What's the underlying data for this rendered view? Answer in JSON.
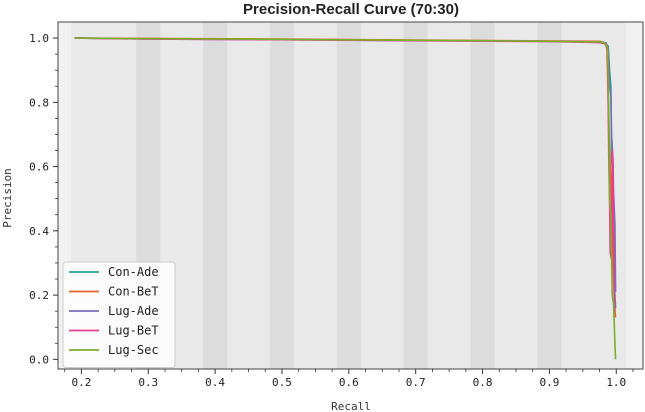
{
  "chart_data": {
    "type": "line",
    "title": "Precision-Recall Curve (70:30)",
    "xlabel": "Recall",
    "ylabel": "Precision",
    "xlim": [
      0.165,
      1.04
    ],
    "ylim": [
      -0.03,
      1.05
    ],
    "xticks": [
      0.2,
      0.3,
      0.4,
      0.5,
      0.6,
      0.7,
      0.8,
      0.9,
      1.0
    ],
    "yticks": [
      0.0,
      0.2,
      0.4,
      0.6,
      0.8,
      1.0
    ],
    "xtick_labels": [
      "0.2",
      "0.3",
      "0.4",
      "0.5",
      "0.6",
      "0.7",
      "0.8",
      "0.9",
      "1.0"
    ],
    "ytick_labels": [
      "0.0",
      "0.2",
      "0.4",
      "0.6",
      "0.8",
      "1.0"
    ],
    "grid": false,
    "legend_position": "lower-left",
    "colors": {
      "plot_bg": "#e9e9e9",
      "band_dark": "#dcdcdc",
      "band_light": "#f2f2f2"
    },
    "series": [
      {
        "name": "Con-Ade",
        "color": "#2aa198",
        "points": [
          [
            0.19,
            1.0
          ],
          [
            0.3,
            0.998
          ],
          [
            0.5,
            0.996
          ],
          [
            0.7,
            0.993
          ],
          [
            0.9,
            0.99
          ],
          [
            0.975,
            0.988
          ],
          [
            0.982,
            0.985
          ],
          [
            0.988,
            0.975
          ],
          [
            0.99,
            0.9
          ],
          [
            0.992,
            0.85
          ],
          [
            0.993,
            0.62
          ],
          [
            0.995,
            0.58
          ],
          [
            0.996,
            0.35
          ],
          [
            0.997,
            0.3
          ],
          [
            0.998,
            0.2
          ],
          [
            0.999,
            0.16
          ]
        ]
      },
      {
        "name": "Con-BeT",
        "color": "#e8652b",
        "points": [
          [
            0.19,
            1.0
          ],
          [
            0.3,
            0.999
          ],
          [
            0.5,
            0.997
          ],
          [
            0.7,
            0.994
          ],
          [
            0.9,
            0.991
          ],
          [
            0.975,
            0.99
          ],
          [
            0.982,
            0.986
          ],
          [
            0.986,
            0.97
          ],
          [
            0.988,
            0.8
          ],
          [
            0.99,
            0.65
          ],
          [
            0.992,
            0.55
          ],
          [
            0.994,
            0.4
          ],
          [
            0.996,
            0.25
          ],
          [
            0.998,
            0.15
          ],
          [
            0.999,
            0.13
          ]
        ]
      },
      {
        "name": "Lug-Ade",
        "color": "#7a6fb0",
        "points": [
          [
            0.19,
            1.0
          ],
          [
            0.3,
            0.997
          ],
          [
            0.5,
            0.995
          ],
          [
            0.7,
            0.992
          ],
          [
            0.9,
            0.99
          ],
          [
            0.975,
            0.988
          ],
          [
            0.985,
            0.985
          ],
          [
            0.988,
            0.96
          ],
          [
            0.99,
            0.85
          ],
          [
            0.992,
            0.82
          ],
          [
            0.993,
            0.7
          ],
          [
            0.995,
            0.62
          ],
          [
            0.996,
            0.52
          ],
          [
            0.998,
            0.42
          ],
          [
            0.999,
            0.21
          ]
        ]
      },
      {
        "name": "Lug-BeT",
        "color": "#e83e8c",
        "points": [
          [
            0.19,
            1.0
          ],
          [
            0.3,
            0.997
          ],
          [
            0.5,
            0.995
          ],
          [
            0.7,
            0.992
          ],
          [
            0.9,
            0.989
          ],
          [
            0.975,
            0.986
          ],
          [
            0.984,
            0.982
          ],
          [
            0.987,
            0.96
          ],
          [
            0.989,
            0.6
          ],
          [
            0.99,
            0.5
          ],
          [
            0.991,
            0.33
          ],
          [
            0.993,
            0.31
          ],
          [
            0.994,
            0.65
          ],
          [
            0.995,
            0.62
          ],
          [
            0.997,
            0.2
          ],
          [
            0.998,
            0.15
          ]
        ]
      },
      {
        "name": "Lug-Sec",
        "color": "#7cae2f",
        "points": [
          [
            0.19,
            1.0
          ],
          [
            0.3,
            0.998
          ],
          [
            0.5,
            0.996
          ],
          [
            0.7,
            0.993
          ],
          [
            0.9,
            0.99
          ],
          [
            0.975,
            0.988
          ],
          [
            0.983,
            0.985
          ],
          [
            0.987,
            0.97
          ],
          [
            0.989,
            0.75
          ],
          [
            0.99,
            0.5
          ],
          [
            0.992,
            0.45
          ],
          [
            0.994,
            0.2
          ],
          [
            0.996,
            0.17
          ],
          [
            0.998,
            0.05
          ],
          [
            0.999,
            0.0
          ]
        ]
      }
    ]
  }
}
